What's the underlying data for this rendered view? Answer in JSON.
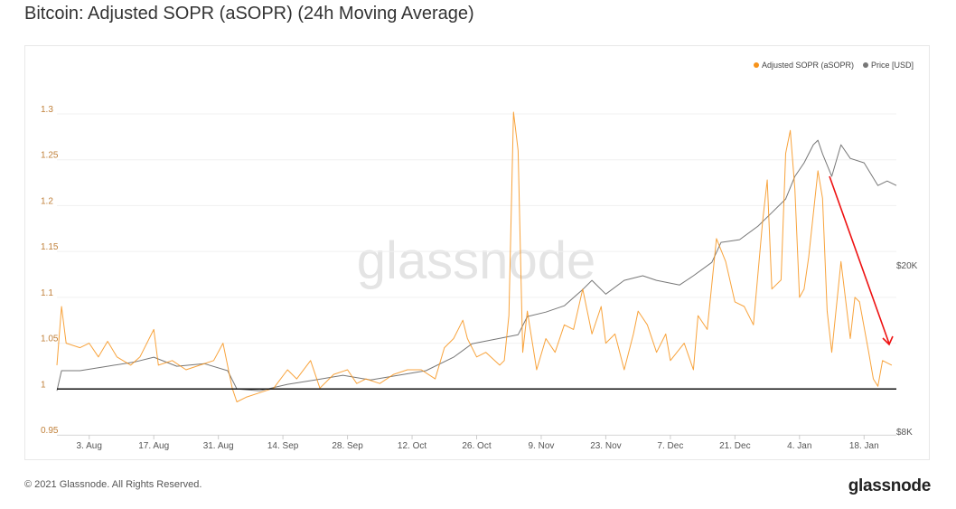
{
  "title": "Bitcoin: Adjusted SOPR (aSOPR) (24h Moving Average)",
  "footer": "© 2021 Glassnode. All Rights Reserved.",
  "logo": "glassnode",
  "watermark": "glassnode",
  "colors": {
    "sopr": "#f7931a",
    "price": "#777777",
    "baseline": "#111111",
    "annotation_arrow": "#ee1111"
  },
  "chart_data": {
    "type": "line",
    "title": "Bitcoin: Adjusted SOPR (aSOPR) (24h Moving Average)",
    "legend": {
      "placement": "top-right",
      "entries": [
        "Adjusted SOPR (aSOPR)",
        "Price [USD]"
      ]
    },
    "x_range": [
      "2020-07-27",
      "2021-01-25"
    ],
    "x_ticks": [
      {
        "date": "2020-08-03",
        "label": "3. Aug"
      },
      {
        "date": "2020-08-17",
        "label": "17. Aug"
      },
      {
        "date": "2020-08-31",
        "label": "31. Aug"
      },
      {
        "date": "2020-09-14",
        "label": "14. Sep"
      },
      {
        "date": "2020-09-28",
        "label": "28. Sep"
      },
      {
        "date": "2020-10-12",
        "label": "12. Oct"
      },
      {
        "date": "2020-10-26",
        "label": "26. Oct"
      },
      {
        "date": "2020-11-09",
        "label": "9. Nov"
      },
      {
        "date": "2020-11-23",
        "label": "23. Nov"
      },
      {
        "date": "2020-12-07",
        "label": "7. Dec"
      },
      {
        "date": "2020-12-21",
        "label": "21. Dec"
      },
      {
        "date": "2021-01-04",
        "label": "4. Jan"
      },
      {
        "date": "2021-01-18",
        "label": "18. Jan"
      }
    ],
    "y_left": {
      "range": [
        0.95,
        1.3
      ],
      "ticks": [
        {
          "v": 0.95,
          "label": "0.95"
        },
        {
          "v": 1,
          "label": "1"
        },
        {
          "v": 1.05,
          "label": "1.05"
        },
        {
          "v": 1.1,
          "label": "1.1"
        },
        {
          "v": 1.15,
          "label": "1.15"
        },
        {
          "v": 1.2,
          "label": "1.2"
        },
        {
          "v": 1.25,
          "label": "1.25"
        },
        {
          "v": 1.3,
          "label": "1.3"
        }
      ]
    },
    "y_right": {
      "scale": "log",
      "range": [
        8000,
        41000
      ],
      "ticks": [
        {
          "v": 8000,
          "label": "$8K"
        },
        {
          "v": 20000,
          "label": "$20K"
        }
      ]
    },
    "grid": true,
    "reference_line": 1,
    "series": [
      {
        "name": "Adjusted SOPR (aSOPR)",
        "axis": "left",
        "points": [
          [
            "2020-07-27",
            1.026
          ],
          [
            "2020-07-28",
            1.09
          ],
          [
            "2020-07-29",
            1.05
          ],
          [
            "2020-08-01",
            1.045
          ],
          [
            "2020-08-03",
            1.05
          ],
          [
            "2020-08-05",
            1.035
          ],
          [
            "2020-08-07",
            1.052
          ],
          [
            "2020-08-09",
            1.035
          ],
          [
            "2020-08-12",
            1.026
          ],
          [
            "2020-08-14",
            1.035
          ],
          [
            "2020-08-17",
            1.065
          ],
          [
            "2020-08-18",
            1.026
          ],
          [
            "2020-08-21",
            1.031
          ],
          [
            "2020-08-24",
            1.021
          ],
          [
            "2020-08-27",
            1.026
          ],
          [
            "2020-08-30",
            1.031
          ],
          [
            "2020-09-01",
            1.05
          ],
          [
            "2020-09-03",
            1.001
          ],
          [
            "2020-09-04",
            0.986
          ],
          [
            "2020-09-06",
            0.991
          ],
          [
            "2020-09-09",
            0.996
          ],
          [
            "2020-09-12",
            1.001
          ],
          [
            "2020-09-15",
            1.021
          ],
          [
            "2020-09-17",
            1.011
          ],
          [
            "2020-09-20",
            1.031
          ],
          [
            "2020-09-22",
            1.001
          ],
          [
            "2020-09-25",
            1.016
          ],
          [
            "2020-09-28",
            1.021
          ],
          [
            "2020-09-30",
            1.006
          ],
          [
            "2020-10-02",
            1.011
          ],
          [
            "2020-10-05",
            1.006
          ],
          [
            "2020-10-08",
            1.016
          ],
          [
            "2020-10-11",
            1.021
          ],
          [
            "2020-10-14",
            1.021
          ],
          [
            "2020-10-17",
            1.011
          ],
          [
            "2020-10-19",
            1.045
          ],
          [
            "2020-10-21",
            1.055
          ],
          [
            "2020-10-23",
            1.075
          ],
          [
            "2020-10-24",
            1.055
          ],
          [
            "2020-10-26",
            1.035
          ],
          [
            "2020-10-28",
            1.04
          ],
          [
            "2020-10-31",
            1.026
          ],
          [
            "2020-11-01",
            1.031
          ],
          [
            "2020-11-02",
            1.08
          ],
          [
            "2020-11-03",
            1.302
          ],
          [
            "2020-11-04",
            1.26
          ],
          [
            "2020-11-05",
            1.04
          ],
          [
            "2020-11-06",
            1.085
          ],
          [
            "2020-11-08",
            1.021
          ],
          [
            "2020-11-10",
            1.055
          ],
          [
            "2020-11-12",
            1.04
          ],
          [
            "2020-11-14",
            1.07
          ],
          [
            "2020-11-16",
            1.065
          ],
          [
            "2020-11-18",
            1.109
          ],
          [
            "2020-11-20",
            1.06
          ],
          [
            "2020-11-22",
            1.09
          ],
          [
            "2020-11-23",
            1.05
          ],
          [
            "2020-11-25",
            1.06
          ],
          [
            "2020-11-27",
            1.021
          ],
          [
            "2020-11-29",
            1.06
          ],
          [
            "2020-11-30",
            1.085
          ],
          [
            "2020-12-02",
            1.07
          ],
          [
            "2020-12-04",
            1.04
          ],
          [
            "2020-12-06",
            1.06
          ],
          [
            "2020-12-07",
            1.031
          ],
          [
            "2020-12-10",
            1.05
          ],
          [
            "2020-12-12",
            1.021
          ],
          [
            "2020-12-13",
            1.08
          ],
          [
            "2020-12-15",
            1.065
          ],
          [
            "2020-12-17",
            1.164
          ],
          [
            "2020-12-19",
            1.139
          ],
          [
            "2020-12-21",
            1.095
          ],
          [
            "2020-12-23",
            1.09
          ],
          [
            "2020-12-25",
            1.07
          ],
          [
            "2020-12-27",
            1.183
          ],
          [
            "2020-12-28",
            1.228
          ],
          [
            "2020-12-29",
            1.109
          ],
          [
            "2020-12-31",
            1.119
          ],
          [
            "2021-01-01",
            1.257
          ],
          [
            "2021-01-02",
            1.282
          ],
          [
            "2021-01-03",
            1.218
          ],
          [
            "2021-01-04",
            1.1
          ],
          [
            "2021-01-05",
            1.109
          ],
          [
            "2021-01-06",
            1.144
          ],
          [
            "2021-01-08",
            1.238
          ],
          [
            "2021-01-09",
            1.208
          ],
          [
            "2021-01-10",
            1.085
          ],
          [
            "2021-01-11",
            1.04
          ],
          [
            "2021-01-13",
            1.139
          ],
          [
            "2021-01-15",
            1.055
          ],
          [
            "2021-01-16",
            1.1
          ],
          [
            "2021-01-17",
            1.095
          ],
          [
            "2021-01-19",
            1.04
          ],
          [
            "2021-01-20",
            1.011
          ],
          [
            "2021-01-21",
            1.003
          ],
          [
            "2021-01-22",
            1.031
          ],
          [
            "2021-01-24",
            1.026
          ]
        ]
      },
      {
        "name": "Price [USD]",
        "axis": "right",
        "points": [
          [
            "2020-07-27",
            10000
          ],
          [
            "2020-07-28",
            11170
          ],
          [
            "2020-08-01",
            11170
          ],
          [
            "2020-08-07",
            11450
          ],
          [
            "2020-08-13",
            11730
          ],
          [
            "2020-08-17",
            12030
          ],
          [
            "2020-08-22",
            11450
          ],
          [
            "2020-08-28",
            11610
          ],
          [
            "2020-09-02",
            11170
          ],
          [
            "2020-09-04",
            10100
          ],
          [
            "2020-09-09",
            10000
          ],
          [
            "2020-09-15",
            10360
          ],
          [
            "2020-09-21",
            10620
          ],
          [
            "2020-09-27",
            10890
          ],
          [
            "2020-10-03",
            10620
          ],
          [
            "2020-10-09",
            10890
          ],
          [
            "2020-10-15",
            11170
          ],
          [
            "2020-10-21",
            12030
          ],
          [
            "2020-10-25",
            12960
          ],
          [
            "2020-10-30",
            13290
          ],
          [
            "2020-11-04",
            13620
          ],
          [
            "2020-11-06",
            15060
          ],
          [
            "2020-11-10",
            15430
          ],
          [
            "2020-11-14",
            15980
          ],
          [
            "2020-11-18",
            17480
          ],
          [
            "2020-11-20",
            18380
          ],
          [
            "2020-11-23",
            17040
          ],
          [
            "2020-11-27",
            18380
          ],
          [
            "2020-12-01",
            18850
          ],
          [
            "2020-12-04",
            18380
          ],
          [
            "2020-12-09",
            17920
          ],
          [
            "2020-12-12",
            18850
          ],
          [
            "2020-12-16",
            20300
          ],
          [
            "2020-12-18",
            22660
          ],
          [
            "2020-12-22",
            23000
          ],
          [
            "2020-12-26",
            24790
          ],
          [
            "2020-12-29",
            26700
          ],
          [
            "2021-01-01",
            28780
          ],
          [
            "2021-01-03",
            32600
          ],
          [
            "2021-01-05",
            35140
          ],
          [
            "2021-01-07",
            38820
          ],
          [
            "2021-01-08",
            39800
          ],
          [
            "2021-01-09",
            36920
          ],
          [
            "2021-01-11",
            32600
          ],
          [
            "2021-01-13",
            38820
          ],
          [
            "2021-01-15",
            36000
          ],
          [
            "2021-01-18",
            35140
          ],
          [
            "2021-01-21",
            31000
          ],
          [
            "2021-01-23",
            31780
          ],
          [
            "2021-01-25",
            31000
          ]
        ]
      }
    ]
  }
}
